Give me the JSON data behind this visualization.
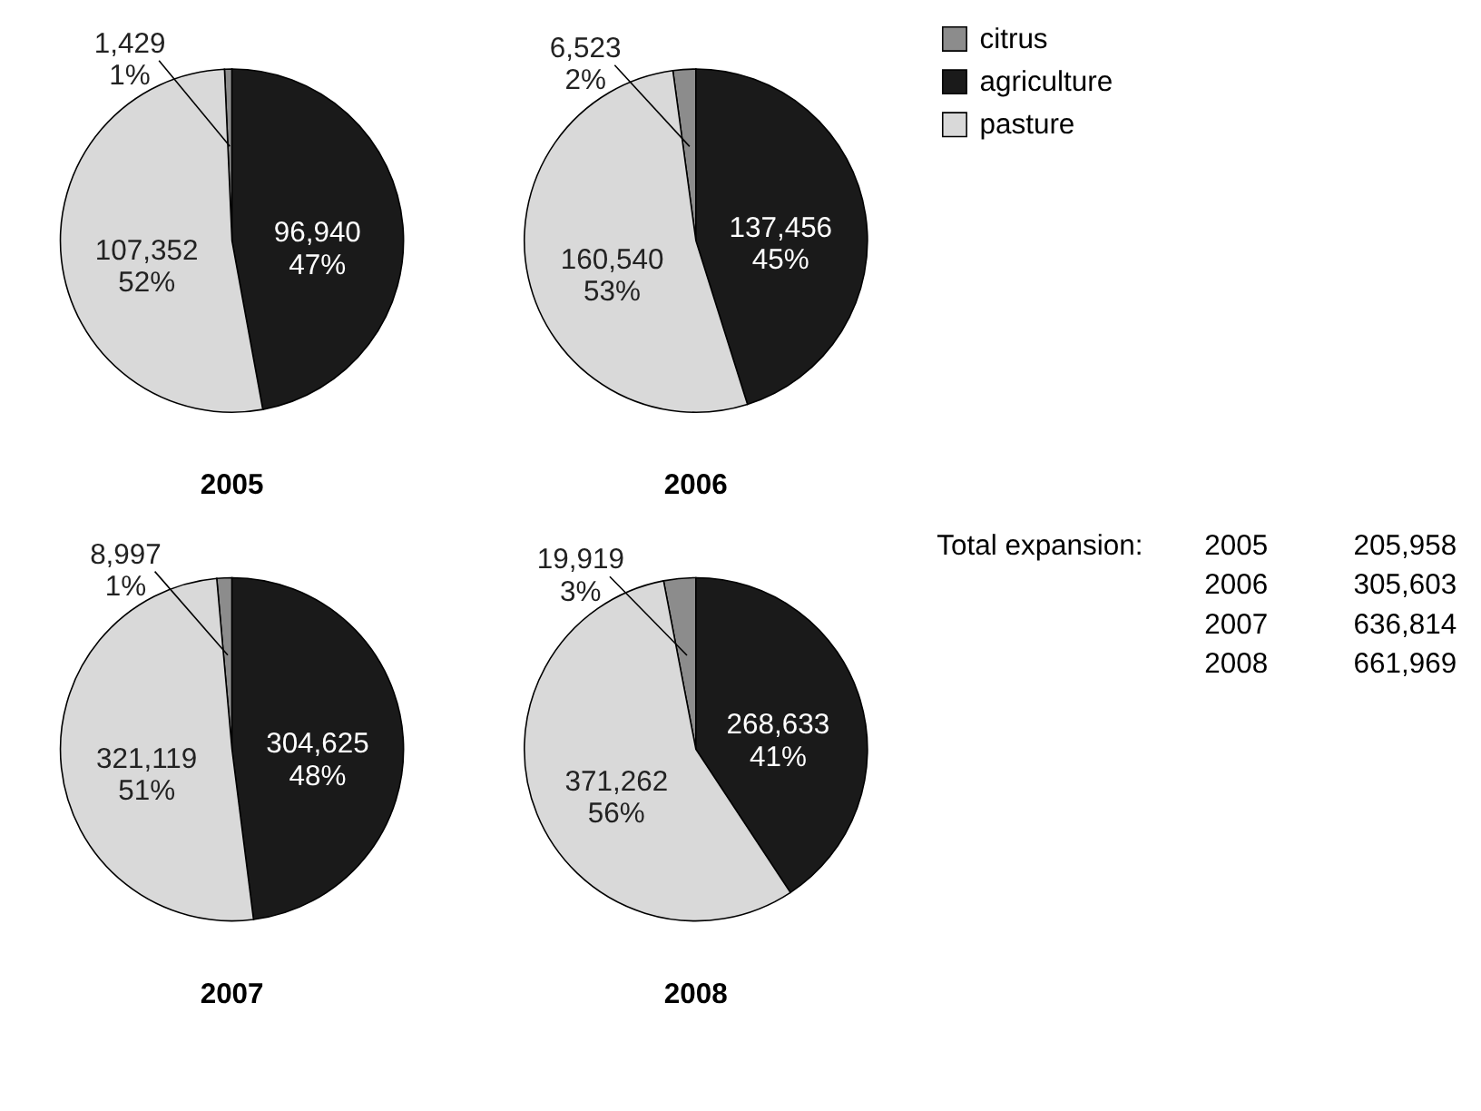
{
  "chart_data": [
    {
      "type": "pie",
      "title": "2005",
      "categories": [
        "citrus",
        "agriculture",
        "pasture"
      ],
      "values": [
        1429,
        96940,
        107352
      ],
      "colors": [
        "#8c8c8c",
        "#1a1a1a",
        "#d9d9d9"
      ],
      "value_labels": [
        "1,429\n1%",
        "96,940\n47%",
        "107,352\n52%"
      ],
      "legend": "right"
    },
    {
      "type": "pie",
      "title": "2006",
      "categories": [
        null,
        null,
        null
      ],
      "values": [
        6523,
        137456,
        160540
      ],
      "colors": [
        "#8c8c8c",
        "#1a1a1a",
        "#d9d9d9"
      ],
      "value_labels": [
        "6,523\n2%",
        "137,456\n45%",
        "160,540\n53%"
      ]
    },
    {
      "type": "pie",
      "title": "2007",
      "categories": [
        null,
        null,
        null
      ],
      "values": [
        8997,
        304625,
        321119
      ],
      "colors": [
        "#8c8c8c",
        "#1a1a1a",
        "#d9d9d9"
      ],
      "value_labels": [
        "8,997\n1%",
        "304,625\n48%",
        "321,119\n51%"
      ]
    },
    {
      "type": "pie",
      "title": "2008",
      "categories": [
        null,
        null,
        null
      ],
      "values": [
        19919,
        268633,
        371262
      ],
      "colors": [
        "#8c8c8c",
        "#1a1a1a",
        "#d9d9d9"
      ],
      "value_labels": [
        "19,919\n3%",
        "268,633\n41%",
        "371,262\n56%"
      ]
    },
    {
      "type": "other",
      "annotations": [
        "Total expansion:",
        "2005   205,958",
        "2006   305,603",
        "2007   636,814",
        "2008   661,969"
      ]
    }
  ]
}
